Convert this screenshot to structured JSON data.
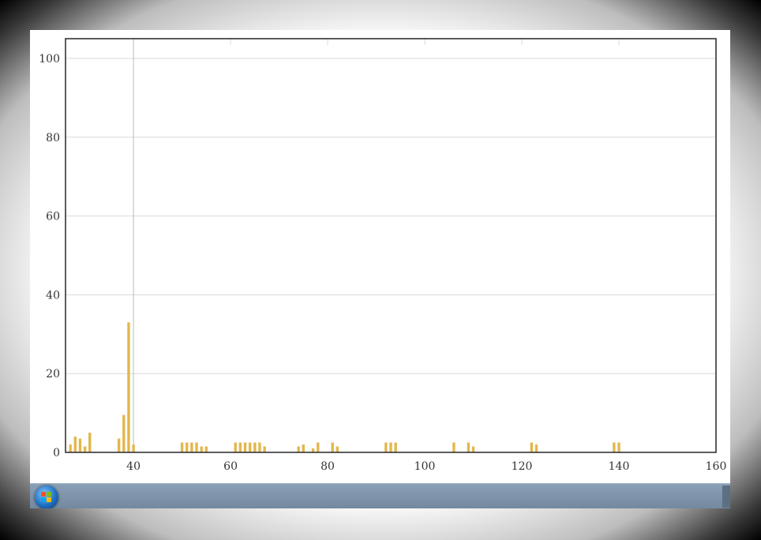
{
  "colors": {
    "bar": "#e3b74d",
    "axis": "#333333",
    "grid": "#d9d9d9",
    "crosshair": "#bbbbbb"
  },
  "chart_data": {
    "type": "bar",
    "title": "",
    "xlabel": "",
    "ylabel": "",
    "xlim": [
      26,
      160
    ],
    "ylim": [
      0,
      105
    ],
    "x_ticks": [
      40,
      60,
      80,
      100,
      120,
      140,
      160
    ],
    "y_ticks": [
      0,
      20,
      40,
      60,
      80,
      100
    ],
    "grid": true,
    "crosshair_x": 40,
    "x": [
      27,
      28,
      29,
      30,
      31,
      37,
      38,
      39,
      40,
      50,
      51,
      52,
      53,
      54,
      55,
      61,
      62,
      63,
      64,
      65,
      66,
      67,
      74,
      75,
      77,
      78,
      81,
      82,
      92,
      93,
      94,
      106,
      109,
      110,
      122,
      123,
      139,
      140
    ],
    "values": [
      2,
      4,
      3.5,
      1.5,
      5,
      3.5,
      9.5,
      33,
      2,
      2.5,
      2.5,
      2.5,
      2.5,
      1.5,
      1.5,
      2.5,
      2.5,
      2.5,
      2.5,
      2.5,
      2.5,
      1.5,
      1.5,
      2,
      1,
      2.5,
      2.5,
      1.5,
      2.5,
      2.5,
      2.5,
      2.5,
      2.5,
      1.5,
      2.5,
      2,
      2.5,
      2.5
    ]
  },
  "taskbar": {
    "start_icon": "windows-start-icon"
  }
}
